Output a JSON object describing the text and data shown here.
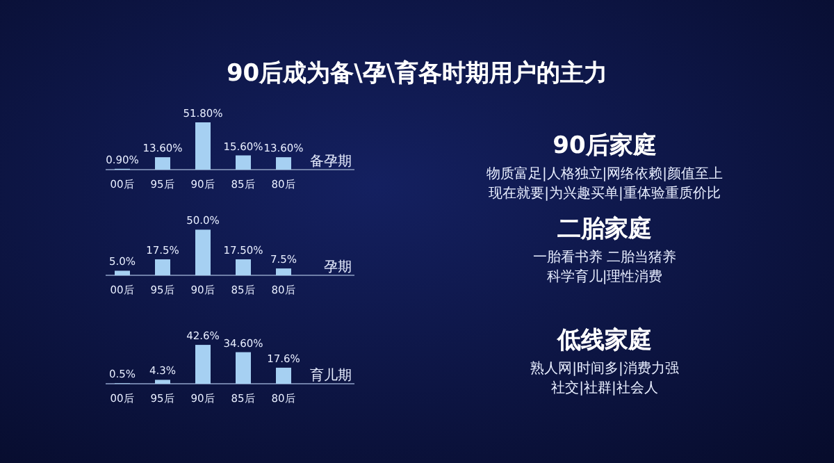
{
  "chart_data": [
    {
      "type": "bar",
      "title": "90后成为备\\孕\\育各时期用户的主力",
      "xlabel": "备孕期",
      "categories": [
        "00后",
        "95后",
        "90后",
        "85后",
        "80后"
      ],
      "values": [
        0.9,
        13.6,
        51.8,
        15.6,
        13.6
      ],
      "value_labels": [
        "0.90%",
        "13.60%",
        "51.80%",
        "15.60%",
        "13.60%"
      ],
      "color": "#a6d0f2"
    },
    {
      "type": "bar",
      "xlabel": "孕期",
      "categories": [
        "00后",
        "95后",
        "90后",
        "85后",
        "80后"
      ],
      "values": [
        5.0,
        17.5,
        50.0,
        17.5,
        7.5
      ],
      "value_labels": [
        "5.0%",
        "17.5%",
        "50.0%",
        "17.50%",
        "7.5%"
      ],
      "color": "#a6d0f2"
    },
    {
      "type": "bar",
      "xlabel": "育儿期",
      "categories": [
        "00后",
        "95后",
        "90后",
        "85后",
        "80后"
      ],
      "values": [
        0.5,
        4.3,
        42.6,
        34.6,
        17.6
      ],
      "value_labels": [
        "0.5%",
        "4.3%",
        "42.6%",
        "34.60%",
        "17.6%"
      ],
      "color": "#a6d0f2"
    },
    {
      "type": "other",
      "title": "90后家庭",
      "annotations": [
        "物质富足|人格独立|网络依赖|颜值至上",
        "现在就要|为兴趣买单|重体验重质价比"
      ]
    },
    {
      "type": "other",
      "title": "二胎家庭",
      "annotations": [
        "一胎看书养 二胎当猪养",
        "科学育儿|理性消费"
      ]
    },
    {
      "type": "other",
      "title": "低线家庭",
      "annotations": [
        "熟人网|时间多|消费力强",
        "社交|社群|社会人"
      ]
    }
  ]
}
